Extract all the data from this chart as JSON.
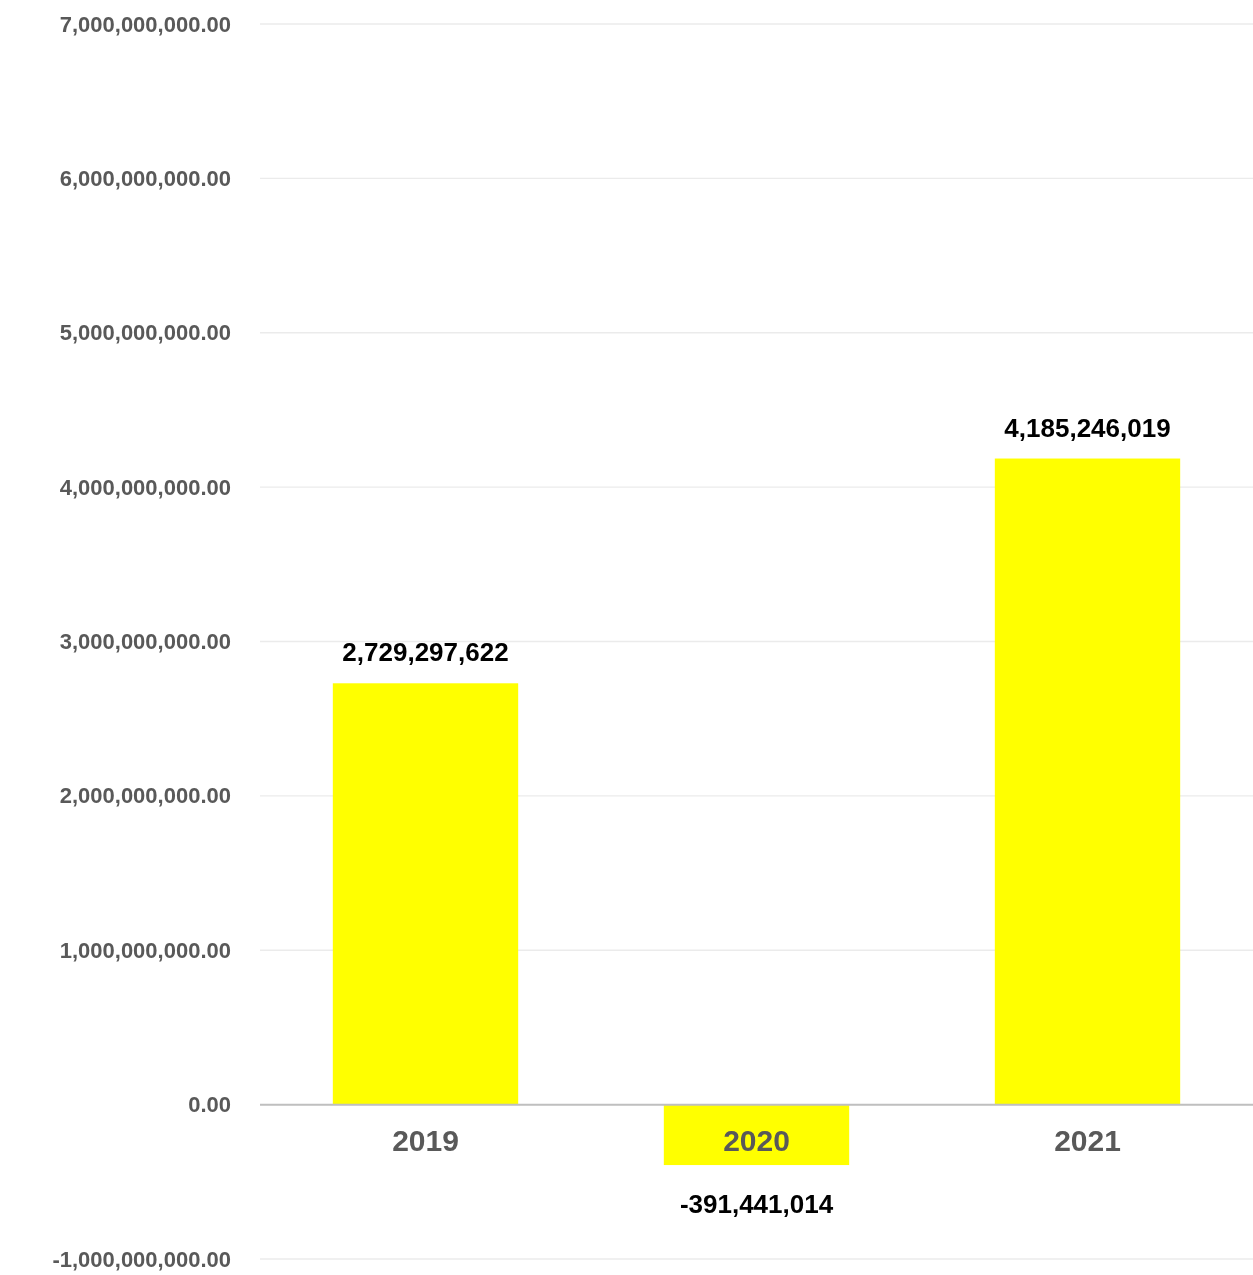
{
  "chart_data": {
    "type": "bar",
    "categories": [
      "2019",
      "2020",
      "2021"
    ],
    "values": [
      2729297622,
      -391441014,
      4185246019
    ],
    "color": "#ffff00",
    "ylim": [
      -1000000000,
      7000000000
    ],
    "yticks": [
      {
        "value": -1000000000,
        "label": "-1,000,000,000.00"
      },
      {
        "value": 0,
        "label": "0.00"
      },
      {
        "value": 1000000000,
        "label": "1,000,000,000.00"
      },
      {
        "value": 2000000000,
        "label": "2,000,000,000.00"
      },
      {
        "value": 3000000000,
        "label": "3,000,000,000.00"
      },
      {
        "value": 4000000000,
        "label": "4,000,000,000.00"
      },
      {
        "value": 5000000000,
        "label": "5,000,000,000.00"
      },
      {
        "value": 6000000000,
        "label": "6,000,000,000.00"
      },
      {
        "value": 7000000000,
        "label": "7,000,000,000.00"
      }
    ],
    "value_labels": [
      "2,729,297,622",
      "-391,441,014",
      "4,185,246,019"
    ],
    "grid": "y"
  }
}
